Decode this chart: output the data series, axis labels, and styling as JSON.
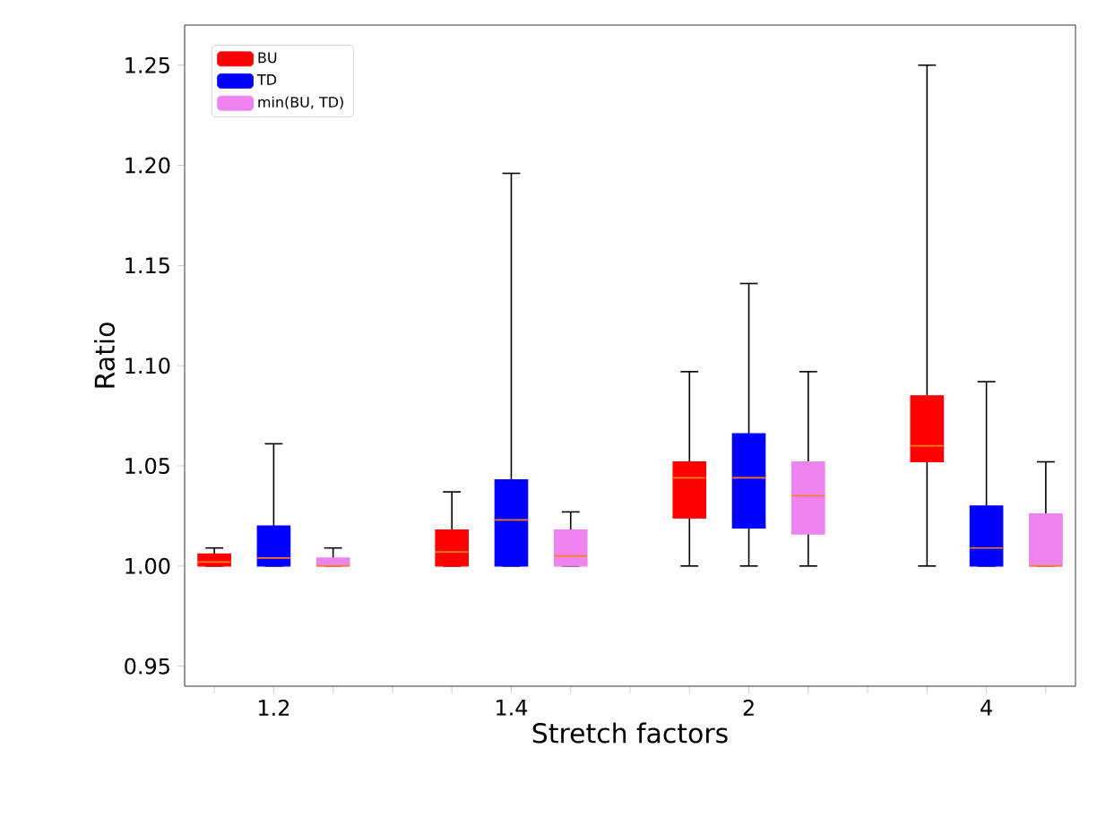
{
  "chart_data": {
    "type": "box",
    "xlabel": "Stretch factors",
    "ylabel": "Ratio",
    "categories": [
      "1.2",
      "1.4",
      "2",
      "4"
    ],
    "series": [
      {
        "name": "BU",
        "color": "#ff0000",
        "boxes": [
          {
            "low": 1.0,
            "q1": 1.0,
            "median": 1.002,
            "q3": 1.006,
            "high": 1.009
          },
          {
            "low": 1.0,
            "q1": 1.0,
            "median": 1.007,
            "q3": 1.018,
            "high": 1.037
          },
          {
            "low": 1.0,
            "q1": 1.024,
            "median": 1.044,
            "q3": 1.052,
            "high": 1.097
          },
          {
            "low": 1.0,
            "q1": 1.052,
            "median": 1.06,
            "q3": 1.085,
            "high": 1.25
          }
        ]
      },
      {
        "name": "TD",
        "color": "#0000ff",
        "boxes": [
          {
            "low": 1.0,
            "q1": 1.0,
            "median": 1.004,
            "q3": 1.02,
            "high": 1.061
          },
          {
            "low": 1.0,
            "q1": 1.0,
            "median": 1.023,
            "q3": 1.043,
            "high": 1.196
          },
          {
            "low": 1.0,
            "q1": 1.019,
            "median": 1.044,
            "q3": 1.066,
            "high": 1.141
          },
          {
            "low": 1.0,
            "q1": 1.0,
            "median": 1.009,
            "q3": 1.03,
            "high": 1.092
          }
        ]
      },
      {
        "name": "min(BU, TD)",
        "color": "#ee82ee",
        "boxes": [
          {
            "low": 1.0,
            "q1": 1.0,
            "median": 1.0,
            "q3": 1.004,
            "high": 1.009
          },
          {
            "low": 1.0,
            "q1": 1.0,
            "median": 1.005,
            "q3": 1.018,
            "high": 1.027
          },
          {
            "low": 1.0,
            "q1": 1.016,
            "median": 1.035,
            "q3": 1.052,
            "high": 1.097
          },
          {
            "low": 1.0,
            "q1": 1.0,
            "median": 1.0,
            "q3": 1.026,
            "high": 1.052
          }
        ]
      }
    ],
    "ylim": [
      0.94,
      1.27
    ],
    "yticks": [
      0.95,
      {
        "value": 1.0,
        "label": "1.00"
      },
      1.05,
      {
        "value": 1.1,
        "label": "1.10"
      },
      1.15,
      {
        "value": 1.2,
        "label": "1.20"
      },
      1.25
    ],
    "grid": false,
    "legend": "top left"
  }
}
